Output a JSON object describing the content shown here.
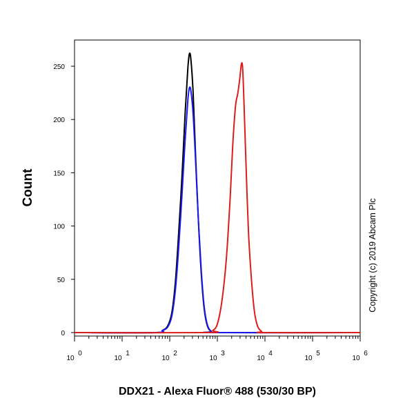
{
  "chart_data": {
    "type": "line",
    "title": "",
    "xlabel": "DDX21 - Alexa Fluor® 488 (530/30 BP)",
    "ylabel": "Count",
    "x_scale": "log",
    "xlim": [
      1,
      1000000
    ],
    "ylim": [
      0,
      280
    ],
    "grid": false,
    "legend": "none",
    "x_ticks": [
      {
        "base": "10",
        "exp": "0",
        "value": 1
      },
      {
        "base": "10",
        "exp": "1",
        "value": 10
      },
      {
        "base": "10",
        "exp": "2",
        "value": 100
      },
      {
        "base": "10",
        "exp": "3",
        "value": 1000
      },
      {
        "base": "10",
        "exp": "4",
        "value": 10000
      },
      {
        "base": "10",
        "exp": "5",
        "value": 100000
      },
      {
        "base": "10",
        "exp": "6",
        "value": 1000000
      }
    ],
    "y_ticks": [
      {
        "label": "0",
        "value": 0
      },
      {
        "label": "50",
        "value": 50
      },
      {
        "label": "100",
        "value": 100
      },
      {
        "label": "150",
        "value": 150
      },
      {
        "label": "200",
        "value": 200
      },
      {
        "label": "250",
        "value": 250
      }
    ],
    "series": [
      {
        "color": "#000000",
        "points": [
          [
            1,
            0
          ],
          [
            50,
            0
          ],
          [
            70,
            2
          ],
          [
            90,
            6
          ],
          [
            110,
            18
          ],
          [
            130,
            45
          ],
          [
            150,
            85
          ],
          [
            180,
            145
          ],
          [
            210,
            205
          ],
          [
            240,
            248
          ],
          [
            260,
            262
          ],
          [
            280,
            255
          ],
          [
            310,
            225
          ],
          [
            350,
            165
          ],
          [
            400,
            105
          ],
          [
            460,
            55
          ],
          [
            530,
            22
          ],
          [
            620,
            6
          ],
          [
            750,
            1
          ],
          [
            900,
            0
          ],
          [
            1000000,
            0
          ]
        ]
      },
      {
        "color": "#1a1aee",
        "points": [
          [
            1,
            0
          ],
          [
            50,
            0
          ],
          [
            70,
            2
          ],
          [
            90,
            5
          ],
          [
            110,
            15
          ],
          [
            130,
            38
          ],
          [
            150,
            72
          ],
          [
            180,
            128
          ],
          [
            210,
            180
          ],
          [
            240,
            218
          ],
          [
            260,
            230
          ],
          [
            280,
            226
          ],
          [
            310,
            205
          ],
          [
            350,
            160
          ],
          [
            400,
            105
          ],
          [
            460,
            58
          ],
          [
            530,
            24
          ],
          [
            620,
            7
          ],
          [
            750,
            1
          ],
          [
            900,
            0
          ],
          [
            1000000,
            0
          ]
        ]
      },
      {
        "color": "#dd1c1c",
        "points": [
          [
            1,
            0
          ],
          [
            600,
            0
          ],
          [
            800,
            2
          ],
          [
            1000,
            8
          ],
          [
            1250,
            30
          ],
          [
            1550,
            70
          ],
          [
            1850,
            125
          ],
          [
            2100,
            175
          ],
          [
            2400,
            212
          ],
          [
            2700,
            225
          ],
          [
            2950,
            238
          ],
          [
            3200,
            252
          ],
          [
            3400,
            248
          ],
          [
            3650,
            212
          ],
          [
            4000,
            158
          ],
          [
            4500,
            95
          ],
          [
            5200,
            50
          ],
          [
            6000,
            20
          ],
          [
            7000,
            6
          ],
          [
            8500,
            1
          ],
          [
            10000,
            0
          ],
          [
            1000000,
            0
          ]
        ]
      }
    ]
  },
  "copyright": "Copyright (c) 2019 Abcam Plc"
}
